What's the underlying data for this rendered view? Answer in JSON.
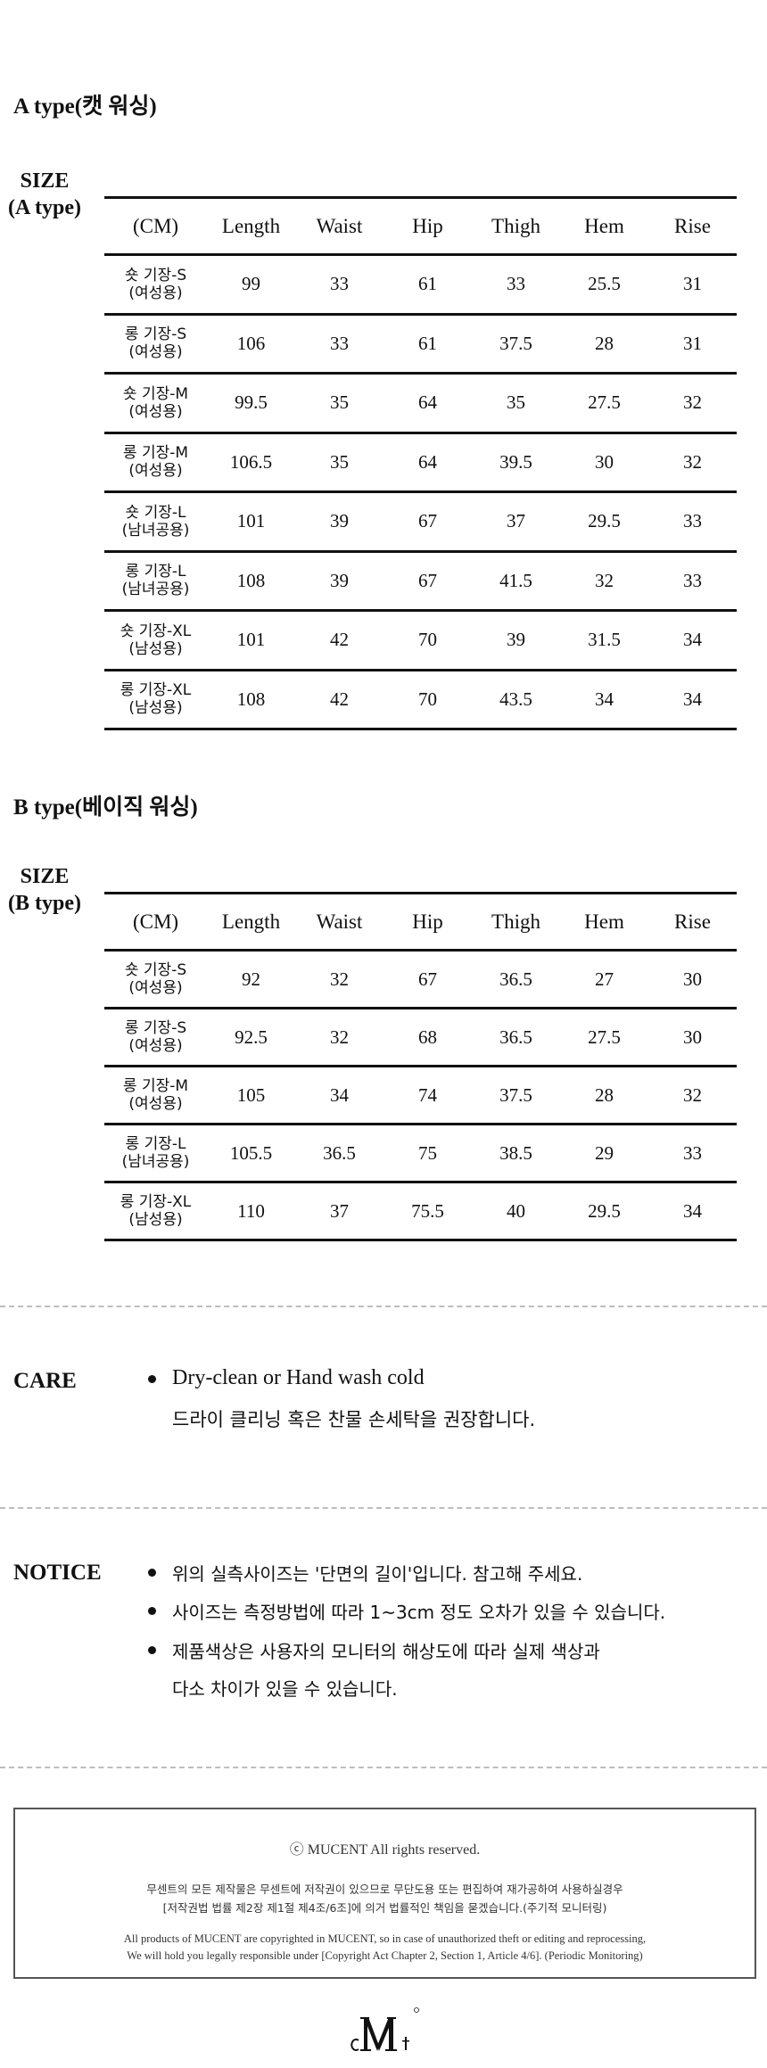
{
  "a_section": {
    "title": "A type(캣 워싱)",
    "size_label_line1": "SIZE",
    "size_label_line2": "(A type)",
    "headers": [
      "(CM)",
      "Length",
      "Waist",
      "Hip",
      "Thigh",
      "Hem",
      "Rise"
    ],
    "rows": [
      {
        "label1": "숏 기장-S",
        "label2": "(여성용)",
        "values": [
          "99",
          "33",
          "61",
          "33",
          "25.5",
          "31"
        ]
      },
      {
        "label1": "롱 기장-S",
        "label2": "(여성용)",
        "values": [
          "106",
          "33",
          "61",
          "37.5",
          "28",
          "31"
        ]
      },
      {
        "label1": "숏 기장-M",
        "label2": "(여성용)",
        "values": [
          "99.5",
          "35",
          "64",
          "35",
          "27.5",
          "32"
        ]
      },
      {
        "label1": "롱 기장-M",
        "label2": "(여성용)",
        "values": [
          "106.5",
          "35",
          "64",
          "39.5",
          "30",
          "32"
        ]
      },
      {
        "label1": "숏 기장-L",
        "label2": "(남녀공용)",
        "values": [
          "101",
          "39",
          "67",
          "37",
          "29.5",
          "33"
        ]
      },
      {
        "label1": "롱 기장-L",
        "label2": "(남녀공용)",
        "values": [
          "108",
          "39",
          "67",
          "41.5",
          "32",
          "33"
        ]
      },
      {
        "label1": "숏 기장-XL",
        "label2": "(남성용)",
        "values": [
          "101",
          "42",
          "70",
          "39",
          "31.5",
          "34"
        ]
      },
      {
        "label1": "롱 기장-XL",
        "label2": "(남성용)",
        "values": [
          "108",
          "42",
          "70",
          "43.5",
          "34",
          "34"
        ]
      }
    ]
  },
  "b_section": {
    "title": "B type(베이직 워싱)",
    "size_label_line1": "SIZE",
    "size_label_line2": "(B type)",
    "headers": [
      "(CM)",
      "Length",
      "Waist",
      "Hip",
      "Thigh",
      "Hem",
      "Rise"
    ],
    "rows": [
      {
        "label1": "숏 기장-S",
        "label2": "(여성용)",
        "values": [
          "92",
          "32",
          "67",
          "36.5",
          "27",
          "30"
        ]
      },
      {
        "label1": "롱 기장-S",
        "label2": "(여성용)",
        "values": [
          "92.5",
          "32",
          "68",
          "36.5",
          "27.5",
          "30"
        ]
      },
      {
        "label1": "롱 기장-M",
        "label2": "(여성용)",
        "values": [
          "105",
          "34",
          "74",
          "37.5",
          "28",
          "32"
        ]
      },
      {
        "label1": "롱 기장-L",
        "label2": "(남녀공용)",
        "values": [
          "105.5",
          "36.5",
          "75",
          "38.5",
          "29",
          "33"
        ]
      },
      {
        "label1": "롱 기장-XL",
        "label2": "(남성용)",
        "values": [
          "110",
          "37",
          "75.5",
          "40",
          "29.5",
          "34"
        ]
      }
    ]
  },
  "care": {
    "label": "CARE",
    "line1": "Dry-clean or Hand wash cold",
    "line2": "드라이 클리닝 혹은 찬물 손세탁을 권장합니다."
  },
  "notice": {
    "label": "NOTICE",
    "items": [
      "위의 실측사이즈는 '단면의 길이'입니다. 참고해 주세요.",
      "사이즈는 측정방법에 따라 1~3cm 정도 오차가 있을 수 있습니다.",
      "제품색상은 사용자의 모니터의 해상도에 따라 실제 색상과"
    ],
    "continuation": "다소 차이가 있을 수 있습니다."
  },
  "footer": {
    "copyright": "ⓒ MUCENT All rights reserved.",
    "ko_line1": "무센트의 모든 제작물은 무센트에 저작권이 있으므로 무단도용 또는 편집하여 재가공하여 사용하실경우",
    "ko_line2": "[저작권법 법률 제2장 제1절 제4조/6조]에 의거 법률적인 책임을 묻겠습니다.(주기적 모니터링)",
    "en_line1": "All products of MUCENT are copyrighted in MUCENT, so in case of unauthorized theft or editing and reprocessing,",
    "en_line2": "We will hold you legally responsible under [Copyright Act Chapter 2, Section 1, Article 4/6]. (Periodic Monitoring)"
  },
  "logo": {
    "text": "cMt"
  }
}
